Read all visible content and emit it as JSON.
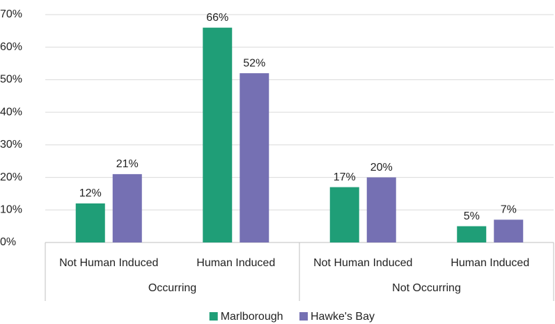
{
  "chart_data": {
    "type": "bar",
    "categories": [
      "Not Human Induced",
      "Human Induced",
      "Not Human Induced",
      "Human Induced"
    ],
    "category_groups": [
      "Occurring",
      "Occurring",
      "Not Occurring",
      "Not Occurring"
    ],
    "series": [
      {
        "name": "Marlborough",
        "color": "#1f9e77",
        "values": [
          12,
          66,
          17,
          5
        ],
        "value_labels": [
          "12%",
          "66%",
          "17%",
          "5%"
        ]
      },
      {
        "name": "Hawke's Bay",
        "color": "#7570b3",
        "values": [
          21,
          52,
          20,
          7
        ],
        "value_labels": [
          "21%",
          "52%",
          "20%",
          "7%"
        ]
      }
    ],
    "ylim": [
      0,
      70
    ],
    "yticks": [
      {
        "value": 0,
        "label": "0%"
      },
      {
        "value": 10,
        "label": "10%"
      },
      {
        "value": 20,
        "label": "20%"
      },
      {
        "value": 30,
        "label": "30%"
      },
      {
        "value": 40,
        "label": "40%"
      },
      {
        "value": 50,
        "label": "50%"
      },
      {
        "value": 60,
        "label": "60%"
      },
      {
        "value": 70,
        "label": "70%"
      }
    ],
    "grid": true,
    "legend": "bottom"
  }
}
